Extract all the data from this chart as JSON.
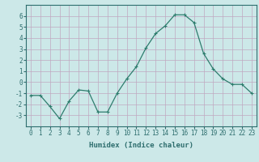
{
  "x": [
    0,
    1,
    2,
    3,
    4,
    5,
    6,
    7,
    8,
    9,
    10,
    11,
    12,
    13,
    14,
    15,
    16,
    17,
    18,
    19,
    20,
    21,
    22,
    23
  ],
  "y": [
    -1.2,
    -1.2,
    -2.2,
    -3.3,
    -1.7,
    -0.7,
    -0.8,
    -2.7,
    -2.7,
    -1.0,
    0.3,
    1.4,
    3.1,
    4.4,
    5.1,
    6.1,
    6.1,
    5.4,
    2.6,
    1.2,
    0.3,
    -0.2,
    -0.2,
    -1.0
  ],
  "line_color": "#2e7d6e",
  "marker_color": "#2e7d6e",
  "bg_color": "#cce8e8",
  "grid_color": "#c0a8c0",
  "xlabel": "Humidex (Indice chaleur)",
  "ylim": [
    -4,
    7
  ],
  "xlim": [
    -0.5,
    23.5
  ],
  "yticks": [
    -3,
    -2,
    -1,
    0,
    1,
    2,
    3,
    4,
    5,
    6
  ],
  "xticks": [
    0,
    1,
    2,
    3,
    4,
    5,
    6,
    7,
    8,
    9,
    10,
    11,
    12,
    13,
    14,
    15,
    16,
    17,
    18,
    19,
    20,
    21,
    22,
    23
  ],
  "xlabel_fontsize": 6.5,
  "tick_fontsize": 5.5
}
